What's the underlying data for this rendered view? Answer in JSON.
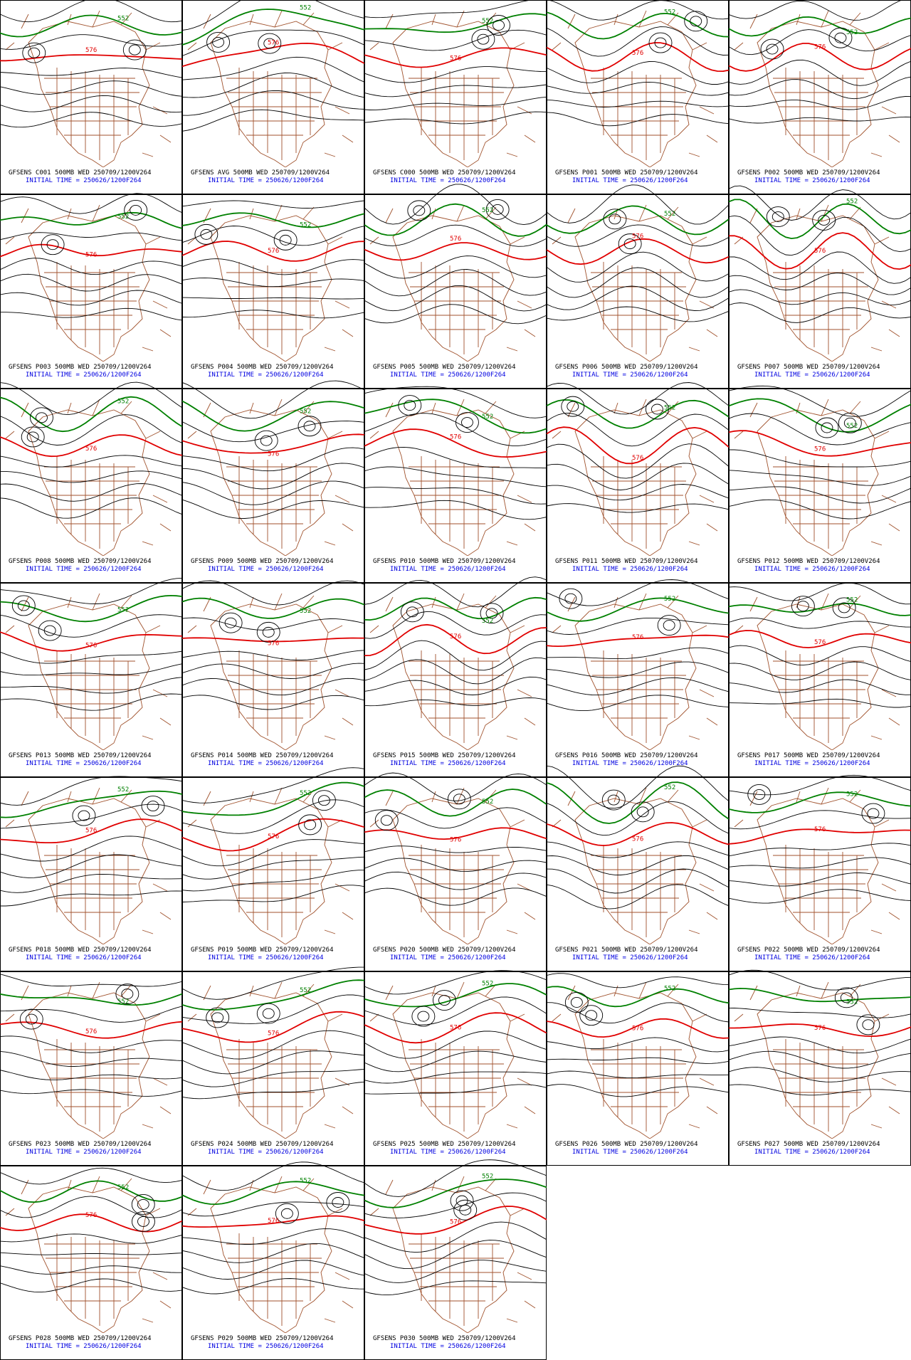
{
  "contour_labels": {
    "red": "576",
    "green": "552"
  },
  "panels": [
    {
      "member": "GFSENS C001 500MB WED 250709/1200V264",
      "init": "INITIAL TIME = 250626/1200F264"
    },
    {
      "member": "GFSENS AVG 500MB WED 250709/1200V264",
      "init": "INITIAL TIME = 250626/1200F264"
    },
    {
      "member": "GFSENS C000 500MB WED 250709/1200V264",
      "init": "INITIAL TIME = 250626/1200F264"
    },
    {
      "member": "GFSENS P001 500MB WED 250709/1200V264",
      "init": "INITIAL TIME = 250626/1200F264"
    },
    {
      "member": "GFSENS P002 500MB WED 250709/1200V264",
      "init": "INITIAL TIME = 250626/1200F264"
    },
    {
      "member": "GFSENS P003 500MB WED 250709/1200V264",
      "init": "INITIAL TIME = 250626/1200F264"
    },
    {
      "member": "GFSENS P004 500MB WED 250709/1200V264",
      "init": "INITIAL TIME = 250626/1200F264"
    },
    {
      "member": "GFSENS P005 500MB WED 250709/1200V264",
      "init": "INITIAL TIME = 250626/1200F264"
    },
    {
      "member": "GFSENS P006 500MB WED 250709/1200V264",
      "init": "INITIAL TIME = 250626/1200F264"
    },
    {
      "member": "GFSENS P007 500MB WED 250709/1200V264",
      "init": "INITIAL TIME = 250626/1200F264"
    },
    {
      "member": "GFSENS P008 500MB WED 250709/1200V264",
      "init": "INITIAL TIME = 250626/1200F264"
    },
    {
      "member": "GFSENS P009 500MB WED 250709/1200V264",
      "init": "INITIAL TIME = 250626/1200F264"
    },
    {
      "member": "GFSENS P010 500MB WED 250709/1200V264",
      "init": "INITIAL TIME = 250626/1200F264"
    },
    {
      "member": "GFSENS P011 500MB WED 250709/1200V264",
      "init": "INITIAL TIME = 250626/1200F264"
    },
    {
      "member": "GFSENS P012 500MB WED 250709/1200V264",
      "init": "INITIAL TIME = 250626/1200F264"
    },
    {
      "member": "GFSENS P013 500MB WED 250709/1200V264",
      "init": "INITIAL TIME = 250626/1200F264"
    },
    {
      "member": "GFSENS P014 500MB WED 250709/1200V264",
      "init": "INITIAL TIME = 250626/1200F264"
    },
    {
      "member": "GFSENS P015 500MB WED 250709/1200V264",
      "init": "INITIAL TIME = 250626/1200F264"
    },
    {
      "member": "GFSENS P016 500MB WED 250709/1200V264",
      "init": "INITIAL TIME = 250626/1200F264"
    },
    {
      "member": "GFSENS P017 500MB WED 250709/1200V264",
      "init": "INITIAL TIME = 250626/1200F264"
    },
    {
      "member": "GFSENS P018 500MB WED 250709/1200V264",
      "init": "INITIAL TIME = 250626/1200F264"
    },
    {
      "member": "GFSENS P019 500MB WED 250709/1200V264",
      "init": "INITIAL TIME = 250626/1200F264"
    },
    {
      "member": "GFSENS P020 500MB WED 250709/1200V264",
      "init": "INITIAL TIME = 250626/1200F264"
    },
    {
      "member": "GFSENS P021 500MB WED 250709/1200V264",
      "init": "INITIAL TIME = 250626/1200F264"
    },
    {
      "member": "GFSENS P022 500MB WED 250709/1200V264",
      "init": "INITIAL TIME = 250626/1200F264"
    },
    {
      "member": "GFSENS P023 500MB WED 250709/1200V264",
      "init": "INITIAL TIME = 250626/1200F264"
    },
    {
      "member": "GFSENS P024 500MB WED 250709/1200V264",
      "init": "INITIAL TIME = 250626/1200F264"
    },
    {
      "member": "GFSENS P025 500MB WED 250709/1200V264",
      "init": "INITIAL TIME = 250626/1200F264"
    },
    {
      "member": "GFSENS P026 500MB WED 250709/1200V264",
      "init": "INITIAL TIME = 250626/1200F264"
    },
    {
      "member": "GFSENS P027 500MB WED 250709/1200V264",
      "init": "INITIAL TIME = 250626/1200F264"
    },
    {
      "member": "GFSENS P028 500MB WED 250709/1200V264",
      "init": "INITIAL TIME = 250626/1200F264"
    },
    {
      "member": "GFSENS P029 500MB WED 250709/1200V264",
      "init": "INITIAL TIME = 250626/1200F264"
    },
    {
      "member": "GFSENS P030 500MB WED 250709/1200V264",
      "init": "INITIAL TIME = 250626/1200F264"
    }
  ]
}
